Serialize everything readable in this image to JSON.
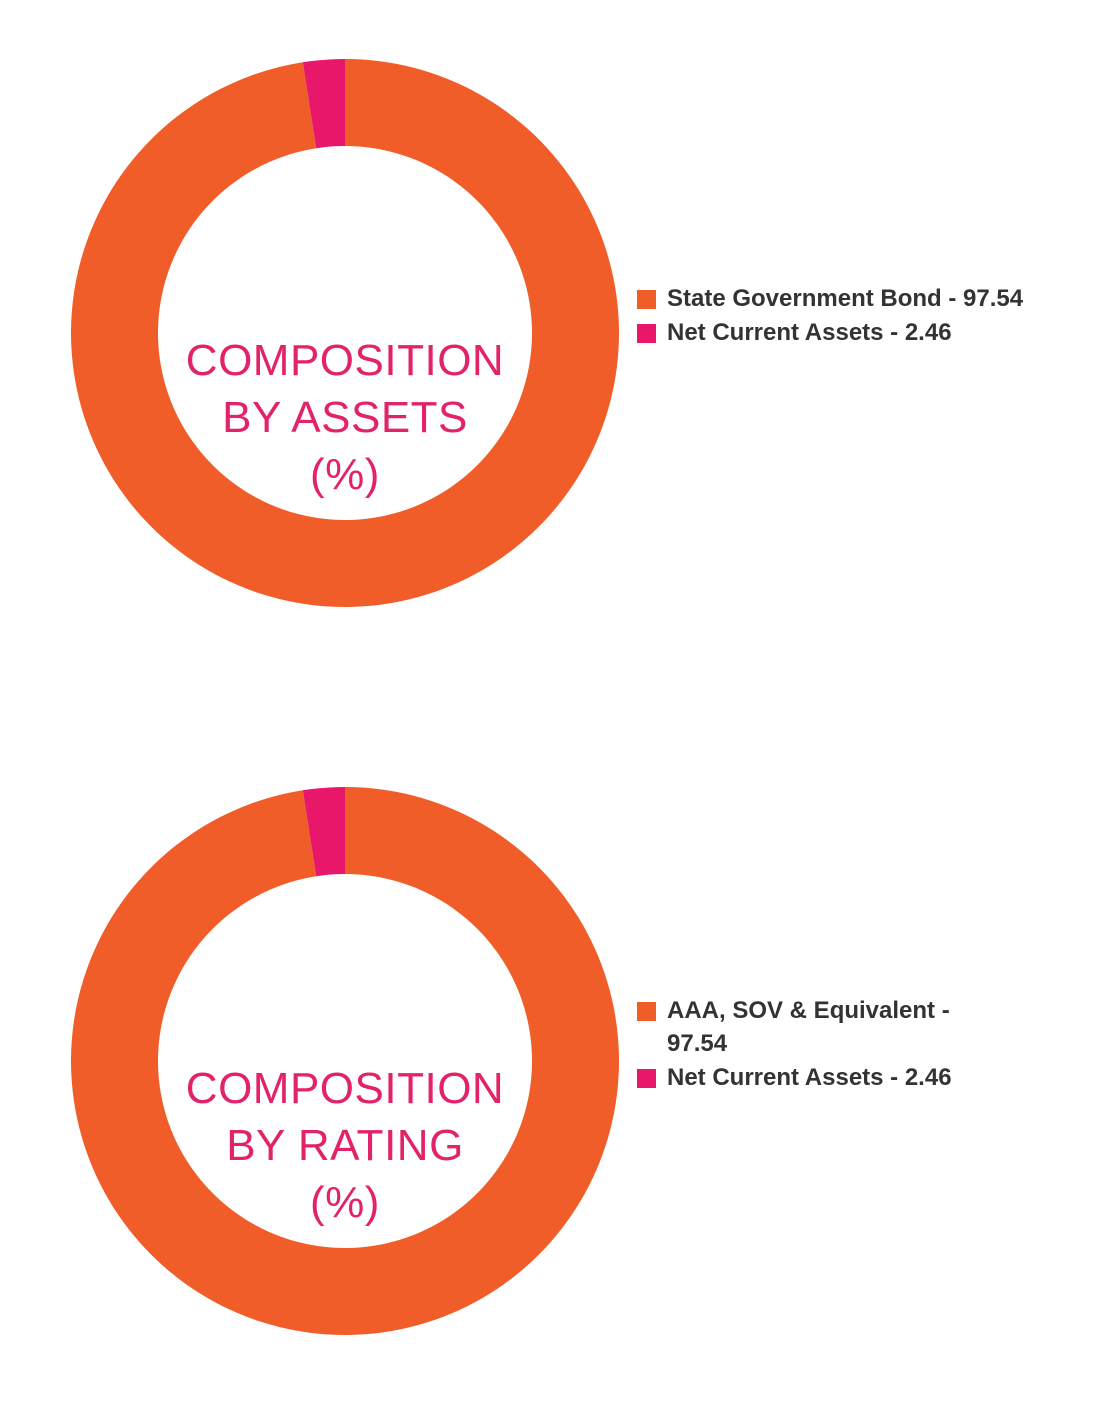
{
  "colors": {
    "orange": "#f05d29",
    "pink": "#e8176a",
    "title": "#e2236a",
    "legend_text": "#333333",
    "background": "#ffffff"
  },
  "chart_data": [
    {
      "type": "pie",
      "title_lines": [
        "COMPOSITION",
        "BY ASSETS",
        "(%)"
      ],
      "series": [
        {
          "name": "State Government Bond",
          "value": 97.54,
          "label": "State Government Bond - 97.54",
          "color": "#f05d29"
        },
        {
          "name": "Net Current Assets",
          "value": 2.46,
          "label": "Net Current Assets - 2.46",
          "color": "#e8176a"
        }
      ],
      "legend_position": "right"
    },
    {
      "type": "pie",
      "title_lines": [
        "COMPOSITION",
        "BY RATING",
        "(%)"
      ],
      "series": [
        {
          "name": "AAA, SOV & Equivalent",
          "value": 97.54,
          "label": "AAA, SOV & Equivalent - 97.54",
          "color": "#f05d29"
        },
        {
          "name": "Net Current Assets",
          "value": 2.46,
          "label": "Net Current Assets - 2.46",
          "color": "#e8176a"
        }
      ],
      "legend_position": "right"
    }
  ]
}
